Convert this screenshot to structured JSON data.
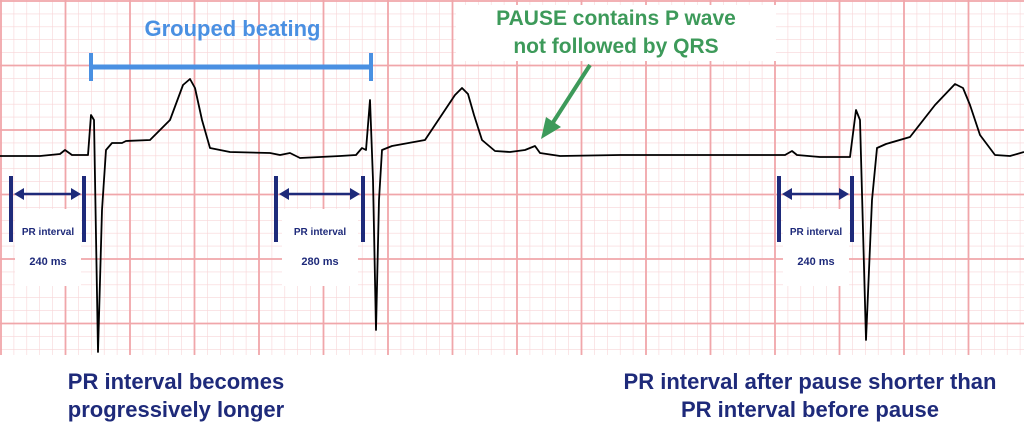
{
  "annotations": {
    "grouped_beating": "Grouped beating",
    "pause_note": "PAUSE contains P wave\nnot followed by QRS",
    "caption_left": "PR interval becomes\nprogressively longer",
    "caption_right": "PR interval after pause shorter than\nPR interval before pause"
  },
  "pr_intervals": [
    {
      "label": "PR interval",
      "value": "240 ms"
    },
    {
      "label": "PR interval",
      "value": "280 ms"
    },
    {
      "label": "PR interval",
      "value": "240 ms"
    }
  ],
  "colors": {
    "grid_major": "#f0a6aa",
    "grid_minor": "#f8d5d7",
    "trace": "#000000",
    "bracket": "#1e2a7a",
    "grouped_beating": "#4a90e2",
    "pause_arrow": "#3d9a5a"
  }
}
